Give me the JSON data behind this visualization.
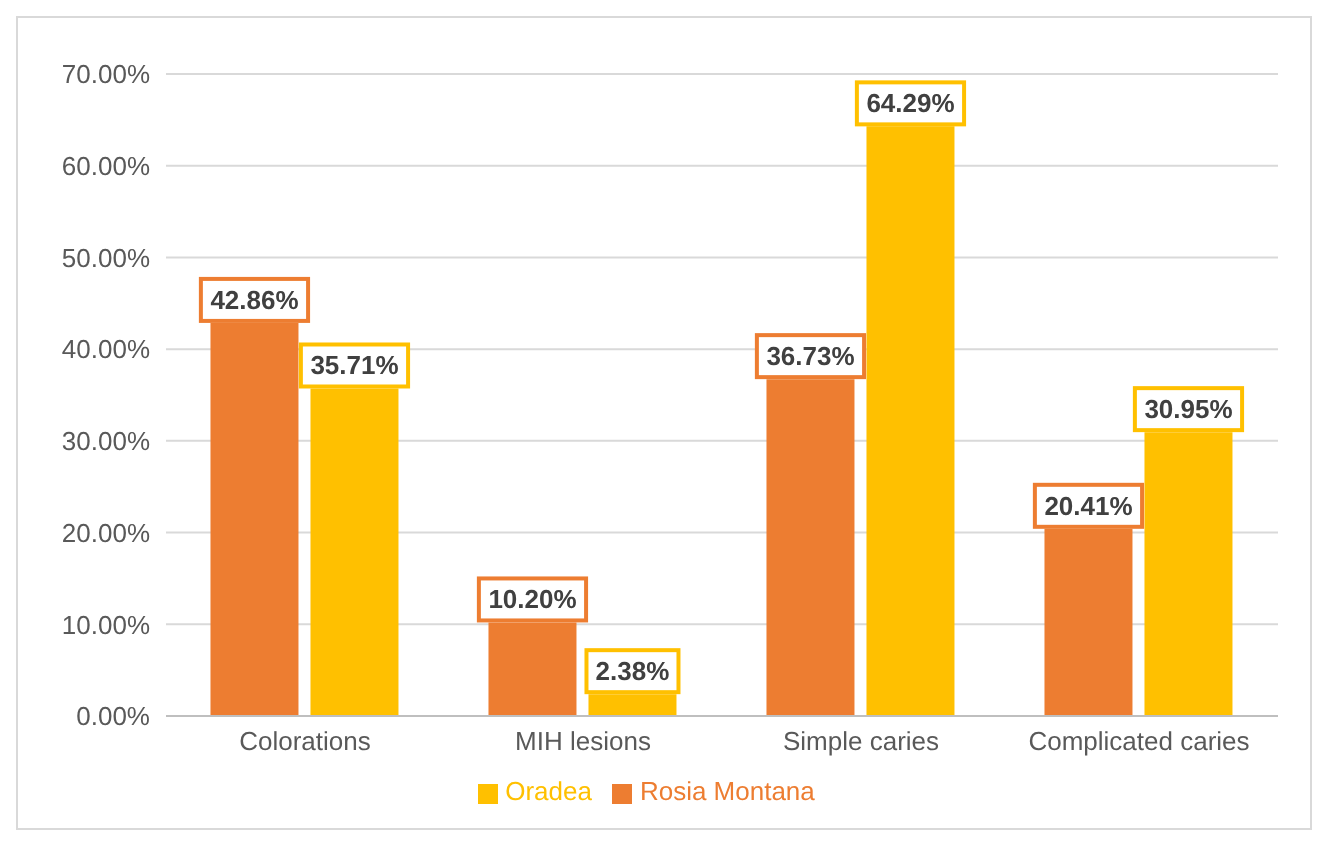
{
  "chart_data": {
    "type": "bar",
    "categories": [
      "Colorations",
      "MIH lesions",
      "Simple caries",
      "Complicated caries"
    ],
    "series": [
      {
        "name": "Rosia Montana",
        "color": "#ed7d31",
        "values": [
          42.86,
          10.2,
          36.73,
          20.41
        ],
        "value_labels": [
          "42.86%",
          "10.20%",
          "36.73%",
          "20.41%"
        ]
      },
      {
        "name": "Oradea",
        "color": "#ffc000",
        "values": [
          35.71,
          2.38,
          64.29,
          30.95
        ],
        "value_labels": [
          "35.71%",
          "2.38%",
          "64.29%",
          "30.95%"
        ]
      }
    ],
    "ylim": [
      0,
      70
    ],
    "yticks": [
      {
        "value": 0,
        "label": "0.00%"
      },
      {
        "value": 10,
        "label": "10.00%"
      },
      {
        "value": 20,
        "label": "20.00%"
      },
      {
        "value": 30,
        "label": "30.00%"
      },
      {
        "value": 40,
        "label": "40.00%"
      },
      {
        "value": 50,
        "label": "50.00%"
      },
      {
        "value": 60,
        "label": "60.00%"
      },
      {
        "value": 70,
        "label": "70.00%"
      }
    ],
    "grid": "y",
    "legend": "bottom"
  }
}
